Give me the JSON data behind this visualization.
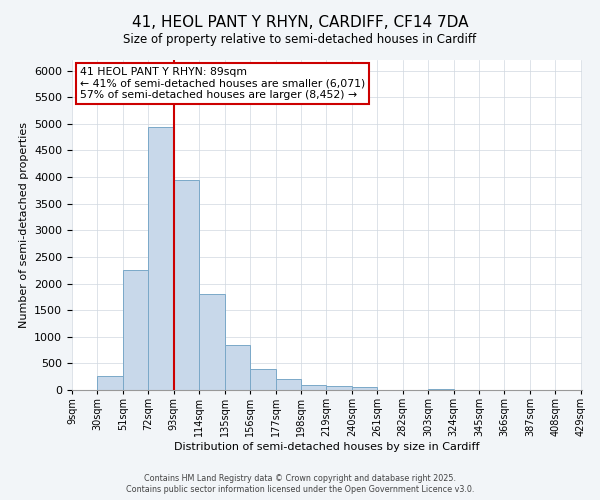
{
  "title_line1": "41, HEOL PANT Y RHYN, CARDIFF, CF14 7DA",
  "title_line2": "Size of property relative to semi-detached houses in Cardiff",
  "xlabel": "Distribution of semi-detached houses by size in Cardiff",
  "ylabel": "Number of semi-detached properties",
  "bin_labels": [
    "9sqm",
    "30sqm",
    "51sqm",
    "72sqm",
    "93sqm",
    "114sqm",
    "135sqm",
    "156sqm",
    "177sqm",
    "198sqm",
    "219sqm",
    "240sqm",
    "261sqm",
    "282sqm",
    "303sqm",
    "324sqm",
    "345sqm",
    "366sqm",
    "387sqm",
    "408sqm",
    "429sqm"
  ],
  "bin_left_edges": [
    9,
    30,
    51,
    72,
    93,
    114,
    135,
    156,
    177,
    198,
    219,
    240,
    261,
    282,
    303,
    324,
    345,
    366,
    387,
    408
  ],
  "bin_width": 21,
  "bar_heights": [
    0,
    270,
    2250,
    4950,
    3950,
    1800,
    850,
    390,
    210,
    100,
    75,
    55,
    0,
    0,
    10,
    0,
    0,
    0,
    0,
    0
  ],
  "bar_color": "#c8d8ea",
  "bar_edge_color": "#7aa8c8",
  "marker_x": 93,
  "xlim_left": 9,
  "xlim_right": 430,
  "ylim": [
    0,
    6200
  ],
  "yticks": [
    0,
    500,
    1000,
    1500,
    2000,
    2500,
    3000,
    3500,
    4000,
    4500,
    5000,
    5500,
    6000
  ],
  "annotation_title": "41 HEOL PANT Y RHYN: 89sqm",
  "annotation_line2": "← 41% of semi-detached houses are smaller (6,071)",
  "annotation_line3": "57% of semi-detached houses are larger (8,452) →",
  "footer_line1": "Contains HM Land Registry data © Crown copyright and database right 2025.",
  "footer_line2": "Contains public sector information licensed under the Open Government Licence v3.0.",
  "background_color": "#f2f5f8",
  "plot_bg_color": "#ffffff",
  "grid_color": "#d0d8e0",
  "annotation_box_edge": "#cc0000",
  "marker_line_color": "#cc0000",
  "title1_fontsize": 11,
  "title2_fontsize": 8.5,
  "xlabel_fontsize": 8,
  "ylabel_fontsize": 8,
  "ytick_fontsize": 8,
  "xtick_fontsize": 7,
  "ann_fontsize": 7.8,
  "footer_fontsize": 5.8
}
